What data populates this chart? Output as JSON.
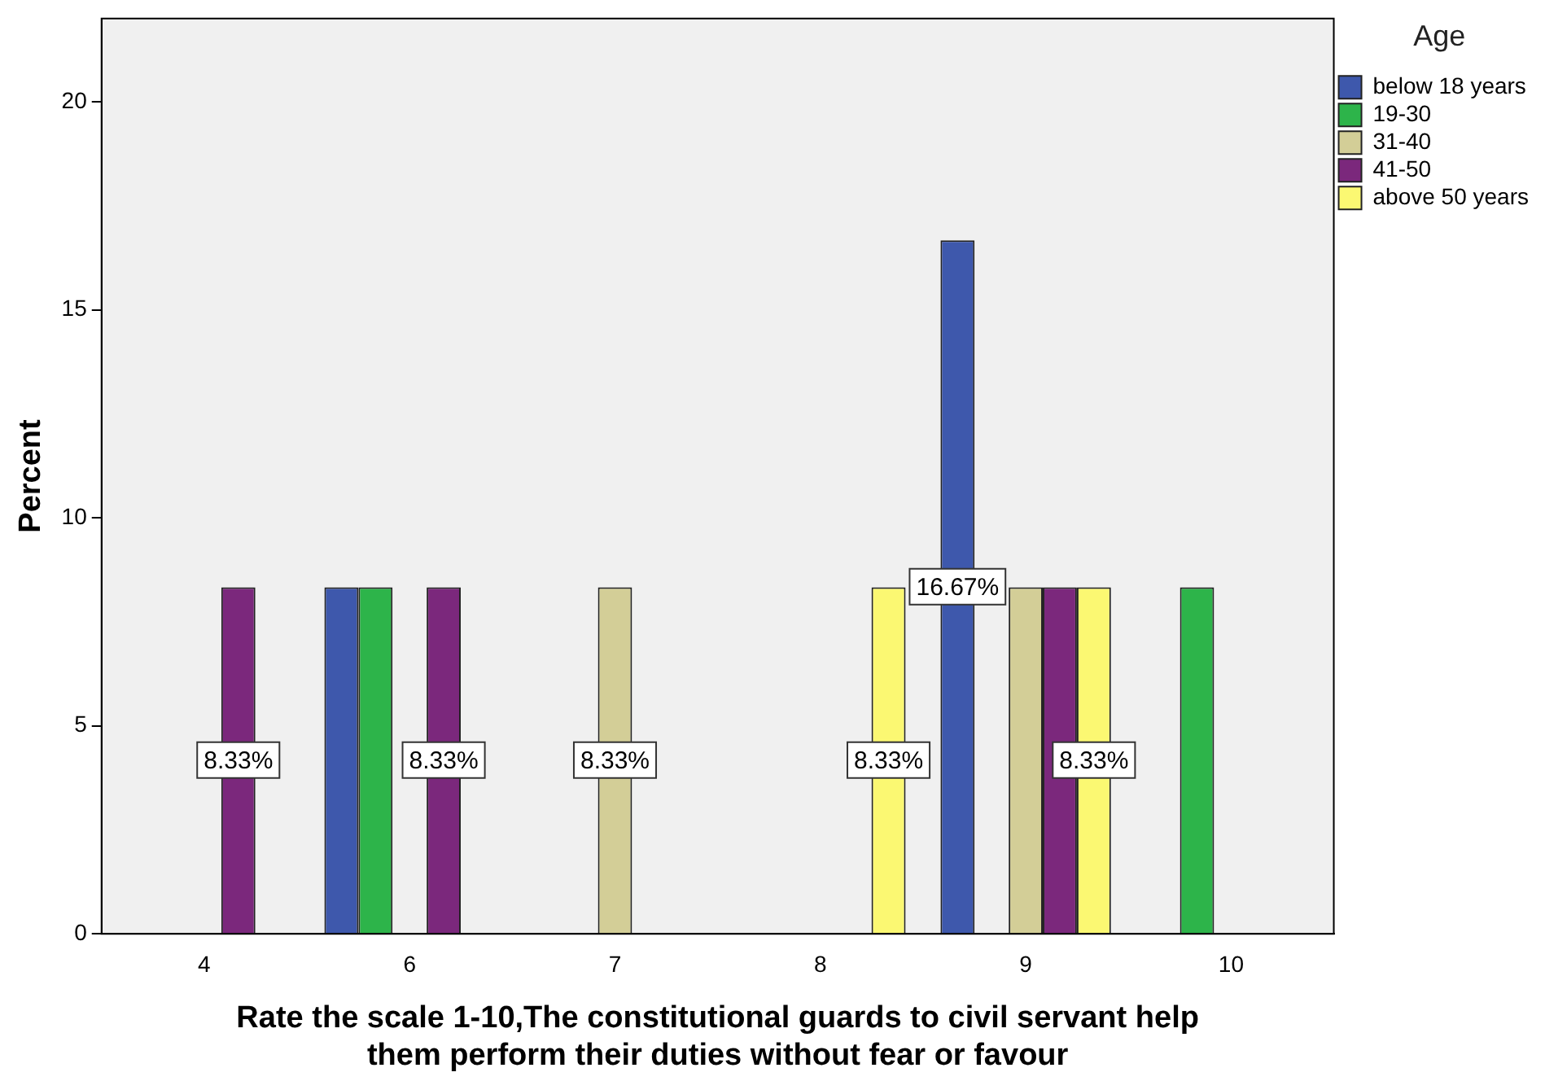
{
  "chart_data": {
    "type": "bar",
    "xlabel": "Rate the scale 1-10,The constitutional guards to civil servant help them perform their duties without fear or favour",
    "ylabel": "Percent",
    "legend_title": "Age",
    "legend": "top right",
    "grid": false,
    "categories": [
      "4",
      "6",
      "7",
      "8",
      "9",
      "10"
    ],
    "ylim": [
      0,
      22
    ],
    "yticks": [
      0,
      5,
      10,
      15,
      20
    ],
    "series": [
      {
        "name": "below 18 years",
        "color": "#3e58ac",
        "values": [
          null,
          8.33,
          null,
          null,
          16.67,
          null
        ],
        "value_labels": [
          null,
          null,
          null,
          null,
          "16.67%",
          null
        ]
      },
      {
        "name": "19-30",
        "color": "#2db44a",
        "values": [
          null,
          8.33,
          null,
          null,
          null,
          8.33
        ],
        "value_labels": [
          null,
          null,
          null,
          null,
          null,
          null
        ]
      },
      {
        "name": "31-40",
        "color": "#d3ce97",
        "values": [
          null,
          null,
          8.33,
          null,
          8.33,
          null
        ],
        "value_labels": [
          null,
          null,
          "8.33%",
          null,
          null,
          null
        ]
      },
      {
        "name": "41-50",
        "color": "#7b287c",
        "values": [
          8.33,
          8.33,
          null,
          null,
          8.33,
          null
        ],
        "value_labels": [
          "8.33%",
          "8.33%",
          null,
          null,
          null,
          null
        ]
      },
      {
        "name": "above 50 years",
        "color": "#fbf872",
        "values": [
          null,
          null,
          null,
          8.33,
          8.33,
          null
        ],
        "value_labels": [
          null,
          null,
          null,
          "8.33%",
          "8.33%",
          null
        ]
      }
    ]
  }
}
